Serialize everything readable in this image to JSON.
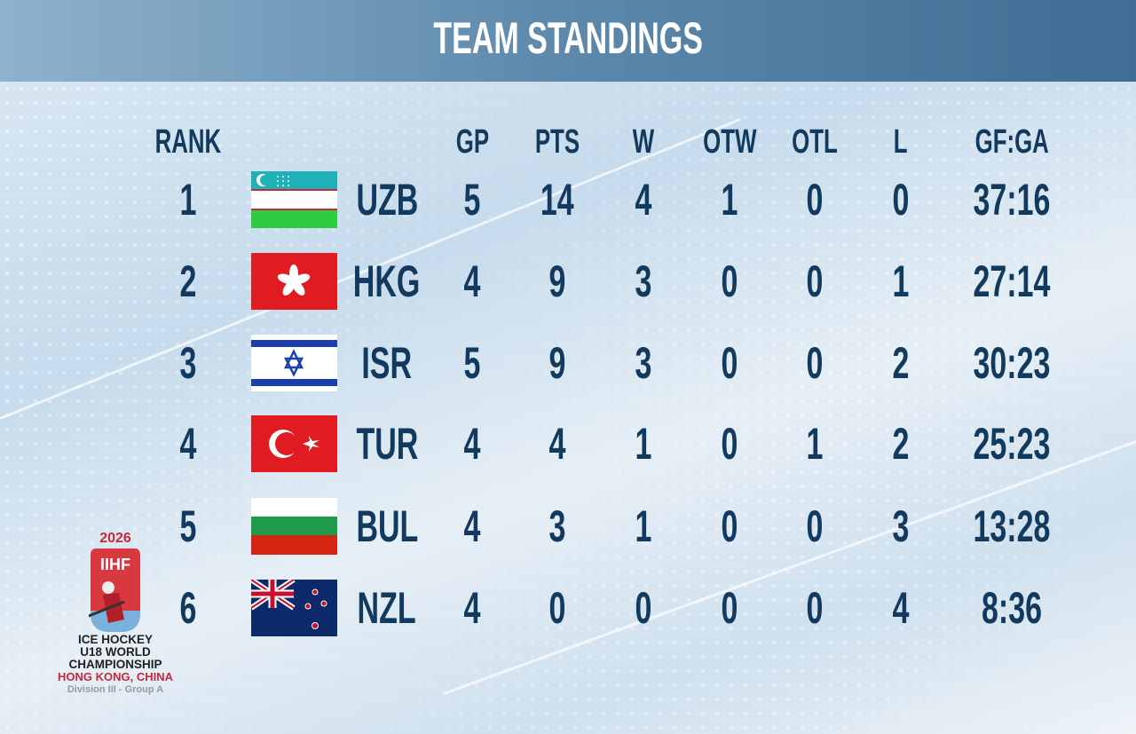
{
  "title": "TEAM STANDINGS",
  "columns": {
    "rank": "RANK",
    "gp": "GP",
    "pts": "PTS",
    "w": "W",
    "otw": "OTW",
    "otl": "OTL",
    "l": "L",
    "gfga": "GF:GA"
  },
  "rows": [
    {
      "rank": "1",
      "flag": "uzbekistan-flag",
      "team": "UZB",
      "gp": "5",
      "pts": "14",
      "w": "4",
      "otw": "1",
      "otl": "0",
      "l": "0",
      "gfga": "37:16"
    },
    {
      "rank": "2",
      "flag": "hong-kong-flag",
      "team": "HKG",
      "gp": "4",
      "pts": "9",
      "w": "3",
      "otw": "0",
      "otl": "0",
      "l": "1",
      "gfga": "27:14"
    },
    {
      "rank": "3",
      "flag": "israel-flag",
      "team": "ISR",
      "gp": "5",
      "pts": "9",
      "w": "3",
      "otw": "0",
      "otl": "0",
      "l": "2",
      "gfga": "30:23"
    },
    {
      "rank": "4",
      "flag": "turkey-flag",
      "team": "TUR",
      "gp": "4",
      "pts": "4",
      "w": "1",
      "otw": "0",
      "otl": "1",
      "l": "2",
      "gfga": "25:23"
    },
    {
      "rank": "5",
      "flag": "bulgaria-flag",
      "team": "BUL",
      "gp": "4",
      "pts": "3",
      "w": "1",
      "otw": "0",
      "otl": "0",
      "l": "3",
      "gfga": "13:28"
    },
    {
      "rank": "6",
      "flag": "new-zealand-flag",
      "team": "NZL",
      "gp": "4",
      "pts": "0",
      "w": "0",
      "otw": "0",
      "otl": "0",
      "l": "4",
      "gfga": "8:36"
    }
  ],
  "logo": {
    "year": "2026",
    "brand": "IIHF",
    "line1": "ICE HOCKEY",
    "line2": "U18 WORLD",
    "line3": "CHAMPIONSHIP",
    "location": "HONG KONG, CHINA",
    "division": "Division III - Group A"
  },
  "colors": {
    "text": "#12395e",
    "header": "#4f7ea3",
    "accent": "#c8283a"
  }
}
